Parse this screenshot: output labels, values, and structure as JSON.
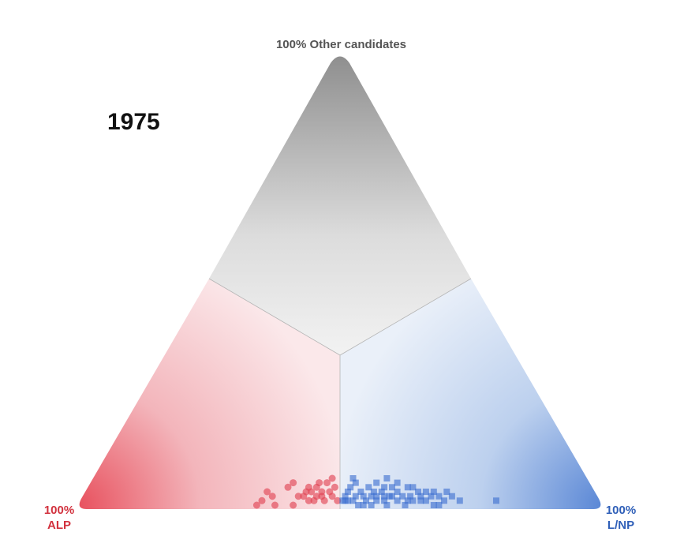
{
  "year": "1975",
  "vertices": {
    "top": "100% Other candidates",
    "left": {
      "line1": "100%",
      "line2": "ALP"
    },
    "right": {
      "line1": "100%",
      "line2": "L/NP"
    }
  },
  "colors": {
    "alp": "#e04050",
    "lnp": "#3d6fd1",
    "other": "#8f8f8f",
    "alp_label": "#d2323e",
    "lnp_label": "#2f5fb8"
  },
  "chart_data": {
    "type": "scatter",
    "subtype": "ternary",
    "title": "1975",
    "axes": [
      "ALP",
      "L/NP",
      "Other candidates"
    ],
    "value_keys": [
      "other",
      "alp_minus_lnp"
    ],
    "series": [
      {
        "name": "ALP",
        "marker": "circle",
        "points": [
          [
            0.0,
            0.32
          ],
          [
            0.01,
            0.3
          ],
          [
            0.0,
            0.18
          ],
          [
            0.01,
            0.1
          ],
          [
            0.01,
            0.01
          ],
          [
            0.03,
            0.28
          ],
          [
            0.02,
            0.26
          ],
          [
            0.04,
            0.2
          ],
          [
            0.05,
            0.18
          ],
          [
            0.02,
            0.16
          ],
          [
            0.03,
            0.13
          ],
          [
            0.01,
            0.12
          ],
          [
            0.04,
            0.09
          ],
          [
            0.02,
            0.07
          ],
          [
            0.01,
            0.06
          ],
          [
            0.05,
            0.05
          ],
          [
            0.03,
            0.04
          ],
          [
            0.02,
            0.03
          ],
          [
            0.06,
            0.03
          ],
          [
            0.04,
            0.12
          ],
          [
            0.03,
            0.11
          ],
          [
            0.02,
            0.09
          ],
          [
            0.04,
            0.02
          ],
          [
            0.0,
            0.25
          ],
          [
            0.02,
            0.14
          ],
          [
            0.05,
            0.08
          ],
          [
            0.03,
            0.07
          ]
        ]
      },
      {
        "name": "L/NP",
        "marker": "square",
        "points": [
          [
            0.01,
            -0.01
          ],
          [
            0.01,
            -0.02
          ],
          [
            0.03,
            -0.03
          ],
          [
            0.01,
            -0.05
          ],
          [
            0.02,
            -0.06
          ],
          [
            0.0,
            -0.07
          ],
          [
            0.03,
            -0.08
          ],
          [
            0.01,
            -0.1
          ],
          [
            0.02,
            -0.12
          ],
          [
            0.04,
            -0.04
          ],
          [
            0.05,
            -0.06
          ],
          [
            0.02,
            -0.09
          ],
          [
            0.04,
            -0.11
          ],
          [
            0.03,
            -0.13
          ],
          [
            0.01,
            -0.14
          ],
          [
            0.03,
            -0.16
          ],
          [
            0.0,
            -0.18
          ],
          [
            0.02,
            -0.17
          ],
          [
            0.02,
            -0.19
          ],
          [
            0.04,
            -0.2
          ],
          [
            0.01,
            -0.22
          ],
          [
            0.02,
            -0.24
          ],
          [
            0.0,
            -0.25
          ],
          [
            0.04,
            -0.28
          ],
          [
            0.02,
            -0.27
          ],
          [
            0.01,
            -0.31
          ],
          [
            0.03,
            -0.3
          ],
          [
            0.01,
            -0.33
          ],
          [
            0.02,
            -0.35
          ],
          [
            0.03,
            -0.36
          ],
          [
            0.0,
            -0.38
          ],
          [
            0.01,
            -0.4
          ],
          [
            0.02,
            -0.43
          ],
          [
            0.06,
            -0.05
          ],
          [
            0.06,
            -0.18
          ],
          [
            0.05,
            -0.22
          ],
          [
            0.05,
            -0.14
          ],
          [
            0.04,
            -0.26
          ],
          [
            0.03,
            -0.33
          ],
          [
            0.01,
            -0.46
          ],
          [
            0.01,
            -0.03
          ],
          [
            0.0,
            -0.12
          ],
          [
            0.02,
            -0.2
          ],
          [
            0.01,
            -0.28
          ],
          [
            0.0,
            -0.36
          ],
          [
            0.02,
            -0.02
          ],
          [
            0.03,
            -0.22
          ],
          [
            0.02,
            -0.31
          ],
          [
            0.01,
            -0.17
          ],
          [
            0.0,
            -0.09
          ],
          [
            0.04,
            -0.17
          ],
          [
            0.02,
            -0.38
          ],
          [
            0.03,
            -0.41
          ],
          [
            0.01,
            -0.26
          ],
          [
            0.02,
            -0.14
          ],
          [
            0.01,
            -0.6
          ]
        ]
      }
    ]
  }
}
